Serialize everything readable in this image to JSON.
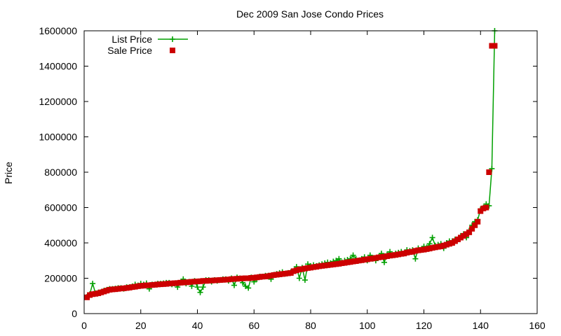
{
  "chart_data": {
    "type": "line",
    "title": "Dec 2009 San Jose Condo Prices",
    "xlabel": "",
    "ylabel": "Price",
    "xlim": [
      0,
      160
    ],
    "ylim": [
      0,
      1600000
    ],
    "x_ticks": [
      0,
      20,
      40,
      60,
      80,
      100,
      120,
      140,
      160
    ],
    "y_ticks": [
      0,
      200000,
      400000,
      600000,
      800000,
      1000000,
      1200000,
      1400000,
      1600000
    ],
    "grid": false,
    "legend_position": "top-left",
    "series": [
      {
        "name": "List Price",
        "color": "#00a000",
        "marker": "plus",
        "line": true,
        "x": [
          1,
          2,
          3,
          4,
          5,
          6,
          7,
          8,
          9,
          10,
          11,
          12,
          13,
          14,
          15,
          16,
          17,
          18,
          19,
          20,
          21,
          22,
          23,
          24,
          25,
          26,
          27,
          28,
          29,
          30,
          31,
          32,
          33,
          34,
          35,
          36,
          37,
          38,
          39,
          40,
          41,
          42,
          43,
          44,
          45,
          46,
          47,
          48,
          49,
          50,
          51,
          52,
          53,
          54,
          55,
          56,
          57,
          58,
          59,
          60,
          61,
          62,
          63,
          64,
          65,
          66,
          67,
          68,
          69,
          70,
          71,
          72,
          73,
          74,
          75,
          76,
          77,
          78,
          79,
          80,
          81,
          82,
          83,
          84,
          85,
          86,
          87,
          88,
          89,
          90,
          91,
          92,
          93,
          94,
          95,
          96,
          97,
          98,
          99,
          100,
          101,
          102,
          103,
          104,
          105,
          106,
          107,
          108,
          109,
          110,
          111,
          112,
          113,
          114,
          115,
          116,
          117,
          118,
          119,
          120,
          121,
          122,
          123,
          124,
          125,
          126,
          127,
          128,
          129,
          130,
          131,
          132,
          133,
          134,
          135,
          136,
          137,
          138,
          139,
          140,
          141,
          142,
          143,
          144,
          145
        ],
        "values": [
          95000,
          110000,
          170000,
          115000,
          120000,
          122000,
          130000,
          135000,
          140000,
          140000,
          142000,
          145000,
          145000,
          140000,
          150000,
          150000,
          155000,
          165000,
          160000,
          170000,
          165000,
          172000,
          140000,
          165000,
          165000,
          170000,
          170000,
          172000,
          175000,
          175000,
          165000,
          170000,
          150000,
          175000,
          195000,
          170000,
          180000,
          155000,
          185000,
          150000,
          120000,
          150000,
          190000,
          190000,
          180000,
          190000,
          185000,
          190000,
          195000,
          195000,
          185000,
          200000,
          160000,
          205000,
          200000,
          175000,
          155000,
          145000,
          205000,
          180000,
          195000,
          210000,
          210000,
          215000,
          215000,
          195000,
          220000,
          225000,
          230000,
          235000,
          225000,
          230000,
          235000,
          240000,
          265000,
          200000,
          260000,
          190000,
          280000,
          270000,
          275000,
          270000,
          275000,
          280000,
          285000,
          290000,
          285000,
          295000,
          300000,
          310000,
          290000,
          300000,
          305000,
          310000,
          330000,
          310000,
          300000,
          310000,
          320000,
          300000,
          330000,
          310000,
          300000,
          320000,
          340000,
          290000,
          335000,
          350000,
          330000,
          340000,
          345000,
          350000,
          340000,
          360000,
          355000,
          360000,
          310000,
          370000,
          360000,
          380000,
          375000,
          395000,
          430000,
          385000,
          390000,
          395000,
          370000,
          400000,
          410000,
          410000,
          420000,
          420000,
          440000,
          450000,
          430000,
          470000,
          500000,
          520000,
          530000,
          590000,
          600000,
          620000,
          610000,
          820000,
          1600000
        ]
      },
      {
        "name": "Sale Price",
        "color": "#cc0000",
        "marker": "square",
        "line": false,
        "x": [
          1,
          2,
          3,
          4,
          5,
          6,
          7,
          8,
          9,
          10,
          11,
          12,
          13,
          14,
          15,
          16,
          17,
          18,
          19,
          20,
          21,
          22,
          23,
          24,
          25,
          26,
          27,
          28,
          29,
          30,
          31,
          32,
          33,
          34,
          35,
          36,
          37,
          38,
          39,
          40,
          41,
          42,
          43,
          44,
          45,
          46,
          47,
          48,
          49,
          50,
          51,
          52,
          53,
          54,
          55,
          56,
          57,
          58,
          59,
          60,
          61,
          62,
          63,
          64,
          65,
          66,
          67,
          68,
          69,
          70,
          71,
          72,
          73,
          74,
          75,
          76,
          77,
          78,
          79,
          80,
          81,
          82,
          83,
          84,
          85,
          86,
          87,
          88,
          89,
          90,
          91,
          92,
          93,
          94,
          95,
          96,
          97,
          98,
          99,
          100,
          101,
          102,
          103,
          104,
          105,
          106,
          107,
          108,
          109,
          110,
          111,
          112,
          113,
          114,
          115,
          116,
          117,
          118,
          119,
          120,
          121,
          122,
          123,
          124,
          125,
          126,
          127,
          128,
          129,
          130,
          131,
          132,
          133,
          134,
          135,
          136,
          137,
          138,
          139,
          140,
          141,
          142,
          143,
          144,
          145
        ],
        "values": [
          92000,
          105000,
          110000,
          112000,
          115000,
          120000,
          125000,
          130000,
          135000,
          137000,
          138000,
          140000,
          142000,
          143000,
          145000,
          147000,
          150000,
          152000,
          155000,
          157000,
          158000,
          160000,
          160000,
          162000,
          163000,
          165000,
          166000,
          167000,
          168000,
          170000,
          171000,
          172000,
          173000,
          175000,
          176000,
          177000,
          178000,
          180000,
          181000,
          182000,
          183000,
          185000,
          185000,
          186000,
          187000,
          188000,
          189000,
          190000,
          191000,
          192000,
          193000,
          195000,
          196000,
          197000,
          198000,
          199000,
          200000,
          200000,
          202000,
          203000,
          205000,
          207000,
          209000,
          210000,
          212000,
          215000,
          218000,
          220000,
          222000,
          224000,
          226000,
          228000,
          230000,
          240000,
          245000,
          250000,
          252000,
          255000,
          258000,
          260000,
          263000,
          265000,
          268000,
          270000,
          272000,
          274000,
          276000,
          278000,
          280000,
          282000,
          285000,
          287000,
          290000,
          292000,
          295000,
          297000,
          300000,
          302000,
          305000,
          307000,
          310000,
          312000,
          315000,
          318000,
          320000,
          322000,
          325000,
          328000,
          330000,
          332000,
          335000,
          338000,
          340000,
          345000,
          348000,
          350000,
          355000,
          358000,
          360000,
          362000,
          365000,
          368000,
          372000,
          375000,
          378000,
          380000,
          385000,
          390000,
          395000,
          400000,
          410000,
          420000,
          430000,
          440000,
          450000,
          460000,
          480000,
          500000,
          520000,
          580000,
          595000,
          600000,
          800000,
          1515000,
          1515000
        ]
      }
    ]
  }
}
